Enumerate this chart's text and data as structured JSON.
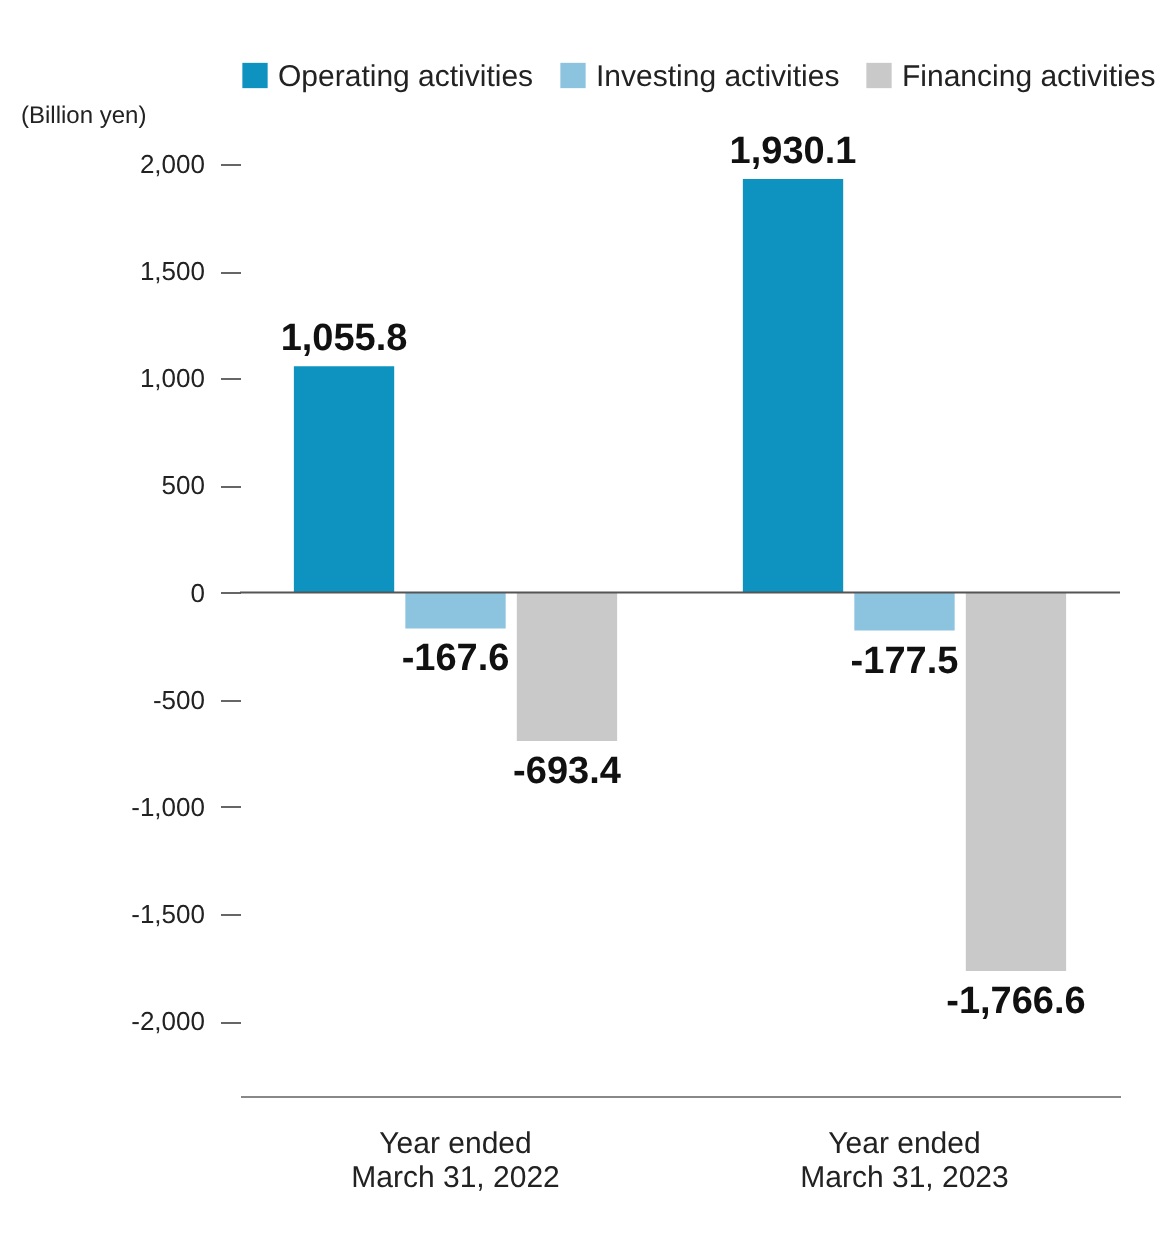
{
  "chart_data": {
    "type": "bar",
    "ylabel": "(Billion yen)",
    "categories": [
      "Year ended\nMarch 31, 2022",
      "Year ended\nMarch 31, 2023"
    ],
    "series": [
      {
        "name": "Operating activities",
        "color": "#0e93c0",
        "values": [
          1055.8,
          1930.1
        ],
        "value_labels": [
          "1,055.8",
          "1,930.1"
        ]
      },
      {
        "name": "Investing activities",
        "color": "#8cc4e0",
        "values": [
          -167.6,
          -177.5
        ],
        "value_labels": [
          "-167.6",
          "-177.5"
        ]
      },
      {
        "name": "Financing activities",
        "color": "#c9c9c9",
        "values": [
          -693.4,
          -1766.6
        ],
        "value_labels": [
          "-693.4",
          "-1,766.6"
        ]
      }
    ],
    "ylim": [
      -2350,
      2000
    ],
    "yticks": [
      {
        "value": -2000,
        "label": "-2,000"
      },
      {
        "value": -1500,
        "label": "-1,500"
      },
      {
        "value": -1000,
        "label": "-1,000"
      },
      -500,
      0,
      500,
      {
        "value": 1000,
        "label": "1,000"
      },
      {
        "value": 1500,
        "label": "1,500"
      },
      {
        "value": 2000,
        "label": "2,000"
      }
    ],
    "ref_lines": [
      {
        "axis": "y",
        "value": 0,
        "color": "#555555"
      }
    ],
    "grid": false,
    "legend": "top"
  }
}
